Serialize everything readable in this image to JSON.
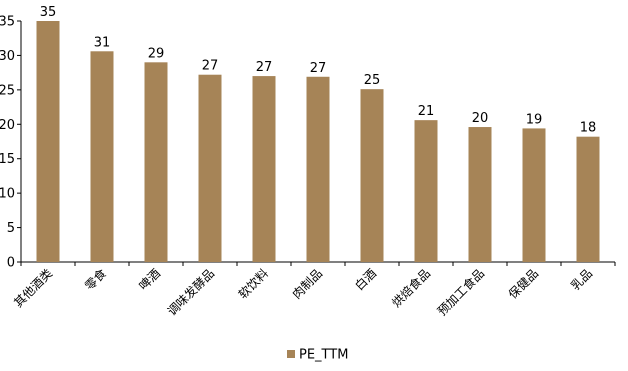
{
  "chart_data": {
    "type": "bar",
    "categories": [
      "其他酒类",
      "零食",
      "啤酒",
      "调味发酵品",
      "软饮料",
      "肉制品",
      "白酒",
      "烘焙食品",
      "预加工食品",
      "保健品",
      "乳品"
    ],
    "series": [
      {
        "name": "PE_TTM",
        "values": [
          35,
          30.6,
          29,
          27.2,
          27,
          26.9,
          25.1,
          20.6,
          19.6,
          19.4,
          18.2
        ],
        "data_labels": [
          "35",
          "31",
          "29",
          "27",
          "27",
          "27",
          "25",
          "21",
          "20",
          "19",
          "18"
        ]
      }
    ],
    "yticks": [
      0,
      5,
      10,
      15,
      20,
      25,
      30,
      35
    ],
    "ylim": [
      0,
      35
    ],
    "grid": false,
    "legend_position": "bottom-center",
    "colors": {
      "bar": "#A68457",
      "axis": "#000000"
    }
  }
}
